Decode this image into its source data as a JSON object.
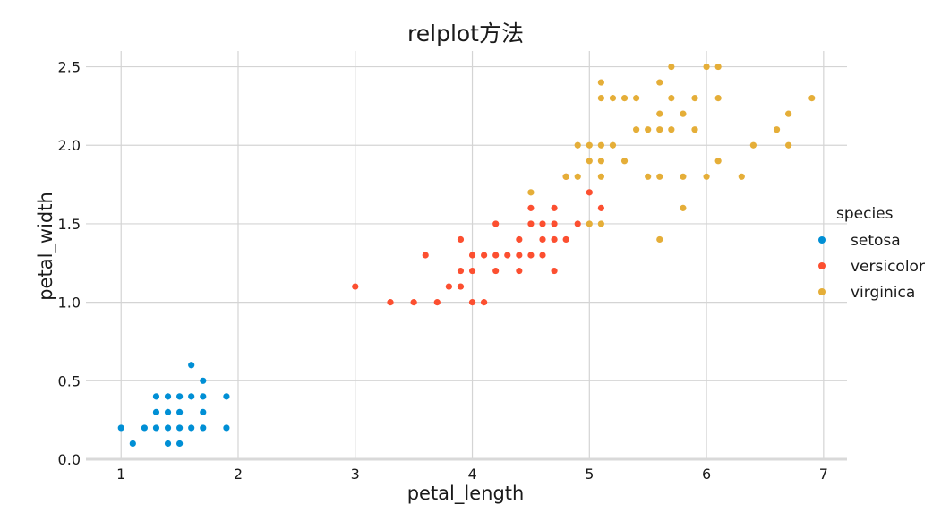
{
  "chart_data": {
    "type": "scatter",
    "title": "relplot方法",
    "xlabel": "petal_length",
    "ylabel": "petal_width",
    "xlim": [
      0.7,
      7.2
    ],
    "ylim": [
      0.0,
      2.6
    ],
    "xticks": [
      1,
      2,
      3,
      4,
      5,
      6,
      7
    ],
    "xtick_labels": [
      "1",
      "2",
      "3",
      "4",
      "5",
      "6",
      "7"
    ],
    "yticks": [
      0.0,
      0.5,
      1.0,
      1.5,
      2.0,
      2.5
    ],
    "ytick_labels": [
      "0.0",
      "0.5",
      "1.0",
      "1.5",
      "2.0",
      "2.5"
    ],
    "grid": true,
    "legend": {
      "title": "species",
      "placement": "right"
    },
    "series": [
      {
        "name": "setosa",
        "color": "#008fd5",
        "points": [
          [
            1.0,
            0.2
          ],
          [
            1.1,
            0.1
          ],
          [
            1.2,
            0.2
          ],
          [
            1.3,
            0.2
          ],
          [
            1.3,
            0.3
          ],
          [
            1.3,
            0.4
          ],
          [
            1.4,
            0.1
          ],
          [
            1.4,
            0.2
          ],
          [
            1.4,
            0.3
          ],
          [
            1.4,
            0.4
          ],
          [
            1.5,
            0.1
          ],
          [
            1.5,
            0.2
          ],
          [
            1.5,
            0.3
          ],
          [
            1.5,
            0.4
          ],
          [
            1.6,
            0.2
          ],
          [
            1.6,
            0.4
          ],
          [
            1.6,
            0.6
          ],
          [
            1.7,
            0.2
          ],
          [
            1.7,
            0.3
          ],
          [
            1.7,
            0.4
          ],
          [
            1.7,
            0.5
          ],
          [
            1.9,
            0.2
          ],
          [
            1.9,
            0.4
          ]
        ]
      },
      {
        "name": "versicolor",
        "color": "#fc4f30",
        "points": [
          [
            3.0,
            1.1
          ],
          [
            3.3,
            1.0
          ],
          [
            3.5,
            1.0
          ],
          [
            3.6,
            1.3
          ],
          [
            3.7,
            1.0
          ],
          [
            3.8,
            1.1
          ],
          [
            3.9,
            1.1
          ],
          [
            3.9,
            1.2
          ],
          [
            3.9,
            1.4
          ],
          [
            4.0,
            1.0
          ],
          [
            4.0,
            1.2
          ],
          [
            4.0,
            1.3
          ],
          [
            4.1,
            1.0
          ],
          [
            4.1,
            1.3
          ],
          [
            4.2,
            1.2
          ],
          [
            4.2,
            1.3
          ],
          [
            4.2,
            1.5
          ],
          [
            4.3,
            1.3
          ],
          [
            4.4,
            1.2
          ],
          [
            4.4,
            1.3
          ],
          [
            4.4,
            1.4
          ],
          [
            4.5,
            1.3
          ],
          [
            4.5,
            1.5
          ],
          [
            4.5,
            1.6
          ],
          [
            4.6,
            1.3
          ],
          [
            4.6,
            1.4
          ],
          [
            4.6,
            1.5
          ],
          [
            4.7,
            1.2
          ],
          [
            4.7,
            1.4
          ],
          [
            4.7,
            1.5
          ],
          [
            4.7,
            1.6
          ],
          [
            4.8,
            1.4
          ],
          [
            4.8,
            1.8
          ],
          [
            4.9,
            1.5
          ],
          [
            5.0,
            1.7
          ],
          [
            5.1,
            1.6
          ]
        ]
      },
      {
        "name": "virginica",
        "color": "#e5ae38",
        "points": [
          [
            4.5,
            1.7
          ],
          [
            4.8,
            1.8
          ],
          [
            4.9,
            1.8
          ],
          [
            4.9,
            2.0
          ],
          [
            5.0,
            1.5
          ],
          [
            5.0,
            1.9
          ],
          [
            5.0,
            2.0
          ],
          [
            5.1,
            1.5
          ],
          [
            5.1,
            1.8
          ],
          [
            5.1,
            1.9
          ],
          [
            5.1,
            2.0
          ],
          [
            5.1,
            2.3
          ],
          [
            5.1,
            2.4
          ],
          [
            5.2,
            2.0
          ],
          [
            5.2,
            2.3
          ],
          [
            5.3,
            1.9
          ],
          [
            5.3,
            2.3
          ],
          [
            5.4,
            2.1
          ],
          [
            5.4,
            2.3
          ],
          [
            5.5,
            1.8
          ],
          [
            5.5,
            2.1
          ],
          [
            5.6,
            1.4
          ],
          [
            5.6,
            1.8
          ],
          [
            5.6,
            2.1
          ],
          [
            5.6,
            2.2
          ],
          [
            5.6,
            2.4
          ],
          [
            5.7,
            2.1
          ],
          [
            5.7,
            2.3
          ],
          [
            5.7,
            2.5
          ],
          [
            5.8,
            1.6
          ],
          [
            5.8,
            1.8
          ],
          [
            5.8,
            2.2
          ],
          [
            5.9,
            2.1
          ],
          [
            5.9,
            2.3
          ],
          [
            6.0,
            1.8
          ],
          [
            6.0,
            2.5
          ],
          [
            6.1,
            1.9
          ],
          [
            6.1,
            2.3
          ],
          [
            6.1,
            2.5
          ],
          [
            6.3,
            1.8
          ],
          [
            6.4,
            2.0
          ],
          [
            6.6,
            2.1
          ],
          [
            6.7,
            2.0
          ],
          [
            6.7,
            2.2
          ],
          [
            6.9,
            2.3
          ]
        ]
      }
    ]
  }
}
